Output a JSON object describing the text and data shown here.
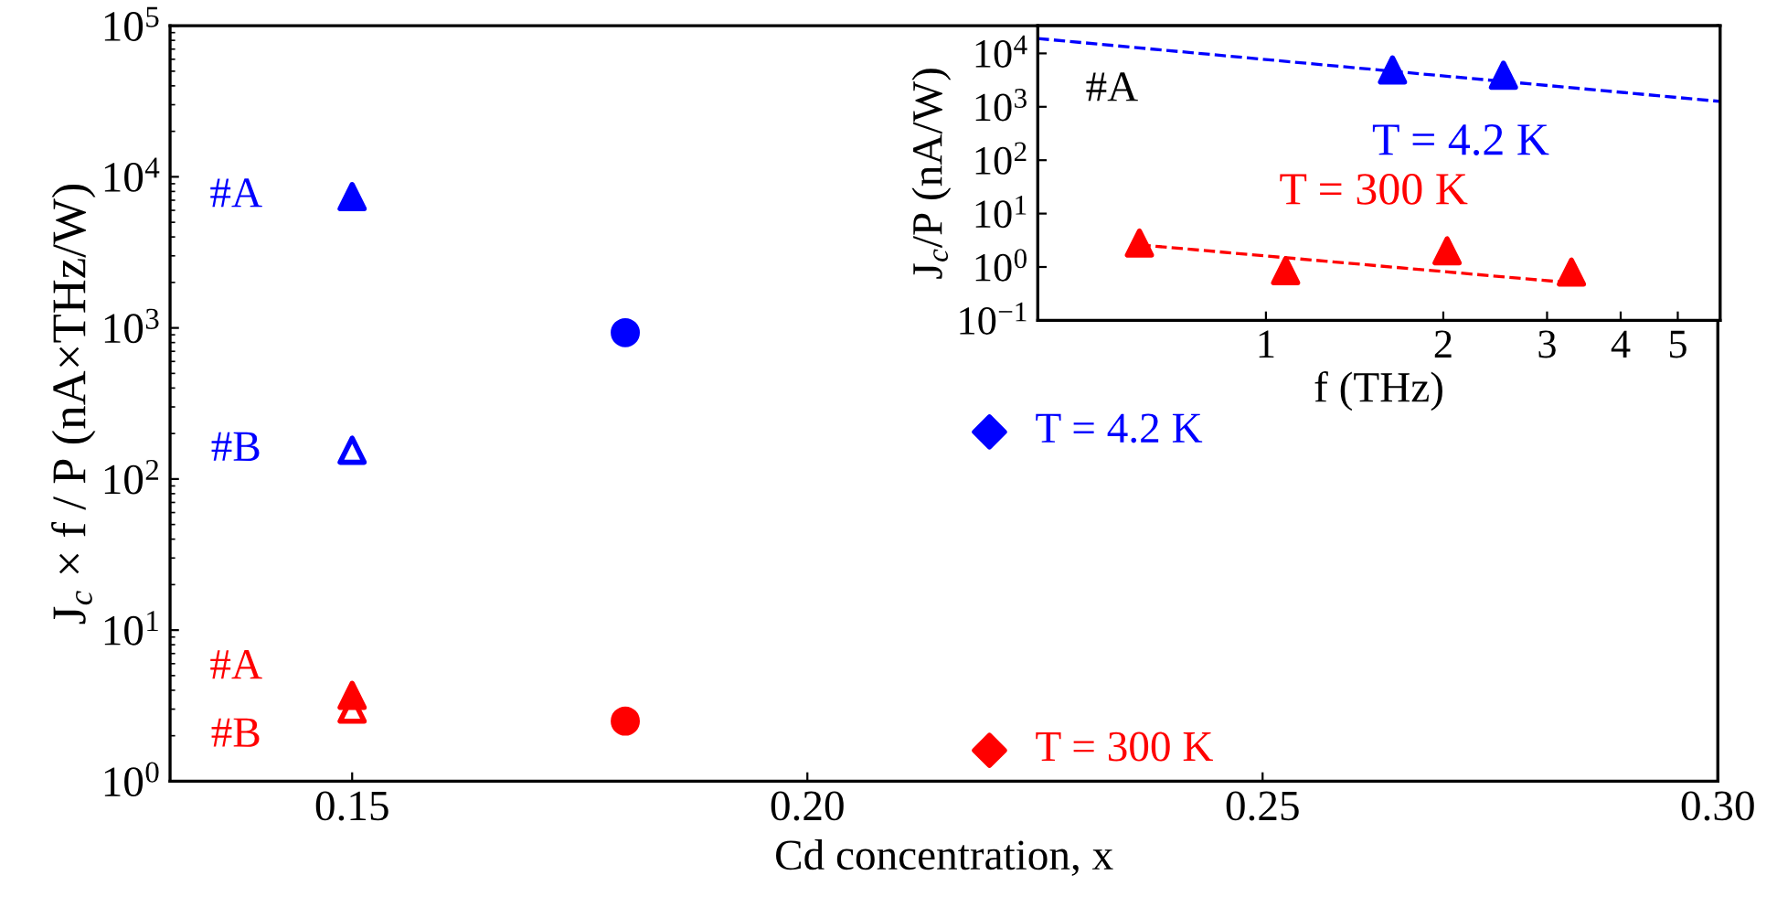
{
  "chart_data": [
    {
      "type": "scatter",
      "xlabel": "Cd concentration, x",
      "ylabel": "J$_{c}$ × f / P (nA×THz/W)",
      "log": "y",
      "xlim": [
        0.13,
        0.3
      ],
      "ylim": [
        1,
        100000
      ],
      "xticks": [
        0.15,
        {
          "value": 0.2,
          "label": "0.20"
        },
        0.25,
        {
          "value": 0.3,
          "label": "0.30"
        }
      ],
      "yticks": [
        {
          "value": 1,
          "label": "10$^{0}$"
        },
        {
          "value": 10,
          "label": "10$^{1}$"
        },
        {
          "value": 100,
          "label": "10$^{2}$"
        },
        {
          "value": 1000,
          "label": "10$^{3}$"
        },
        {
          "value": 10000,
          "label": "10$^{4}$"
        },
        {
          "value": 100000,
          "label": "10$^{5}$"
        }
      ],
      "series": [
        {
          "name": "#A",
          "color": "#0000ff",
          "marker": "triangle",
          "x": [
            0.15
          ],
          "values": [
            7400
          ]
        },
        {
          "name": "#B",
          "color": "#0000ff",
          "marker": "triangle_open",
          "x": [
            0.15
          ],
          "values": [
            155
          ]
        },
        {
          "color": "#0000ff",
          "marker": "circle",
          "x": [
            0.18
          ],
          "values": [
            930
          ]
        },
        {
          "name": "T = 4.2 K",
          "color": "#0000ff",
          "marker": "diamond",
          "x": [
            0.22
          ],
          "values": [
            205
          ]
        },
        {
          "name": "#A",
          "color": "#ff0000",
          "marker": "triangle",
          "x": [
            0.15
          ],
          "values": [
            3.7
          ]
        },
        {
          "name": "#B",
          "color": "#ff0000",
          "marker": "triangle_open",
          "x": [
            0.15
          ],
          "values": [
            3.0
          ]
        },
        {
          "color": "#ff0000",
          "marker": "circle",
          "x": [
            0.18
          ],
          "values": [
            2.5
          ]
        },
        {
          "name": "T = 300 K",
          "color": "#ff0000",
          "marker": "diamond",
          "x": [
            0.22
          ],
          "values": [
            1.6
          ]
        }
      ]
    },
    {
      "type": "scatter",
      "xlabel": "f (THz)",
      "ylabel": "J$_{c}$/P (nA/W)",
      "log": "xy",
      "xlim": [
        0.41,
        5.9
      ],
      "ylim": [
        0.1,
        33000
      ],
      "xticks": [
        1,
        2,
        3,
        4,
        5
      ],
      "yticks": [
        {
          "value": 0.1,
          "label": "10$^{−1}$"
        },
        {
          "value": 1,
          "label": "10$^{0}$"
        },
        {
          "value": 10,
          "label": "10$^{1}$"
        },
        {
          "value": 100,
          "label": "10$^{2}$"
        },
        {
          "value": 1000,
          "label": "10$^{3}$"
        },
        {
          "value": 10000,
          "label": "10$^{4}$"
        }
      ],
      "annotations": [
        "#A"
      ],
      "series": [
        {
          "name": "T = 4.2 K",
          "color": "#0000ff",
          "marker": "triangle",
          "x": [
            1.64,
            2.53
          ],
          "values": [
            4900,
            3900
          ]
        },
        {
          "type": "line",
          "color": "#0000ff",
          "line_style": "dashed",
          "marker": "none",
          "x": [
            0.41,
            5.9
          ],
          "values": [
            19000,
            1260
          ]
        },
        {
          "name": "T = 300 K",
          "color": "#ff0000",
          "marker": "triangle",
          "x": [
            0.61,
            1.08,
            2.03,
            3.3
          ],
          "values": [
            2.8,
            0.85,
            2.0,
            0.8
          ]
        },
        {
          "type": "line",
          "color": "#ff0000",
          "line_style": "dashed",
          "marker": "none",
          "x": [
            0.61,
            3.14
          ],
          "values": [
            2.6,
            0.53
          ]
        }
      ]
    }
  ]
}
